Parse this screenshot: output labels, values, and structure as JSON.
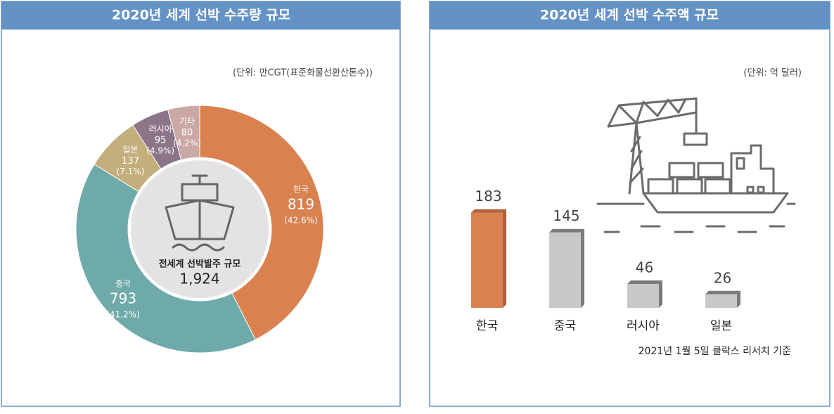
{
  "chart_data": [
    {
      "type": "donut",
      "title": "2020년 세계 선박 수주량 규모",
      "unit": "(단위: 만CGT(표준화물선환산톤수))",
      "categories": [
        "한국",
        "중국",
        "일본",
        "러시아",
        "기타"
      ],
      "values": [
        819,
        793,
        137,
        95,
        80
      ],
      "percent_labels": [
        "(42.6%)",
        "(41.2%)",
        "(7.1%)",
        "(4.9%)",
        "(4.2%)"
      ],
      "colors": [
        "#d9814f",
        "#6eaaa9",
        "#c3ae7c",
        "#8c7589",
        "#c9a8a6"
      ],
      "center_title": "전세계 선박발주 규모",
      "total": {
        "value": 1924,
        "label": "1,924"
      }
    },
    {
      "type": "bar3d",
      "title": "2020년 세계 선박 수주액 규모",
      "unit": "(단위: 억 달러)",
      "categories": [
        "한국",
        "중국",
        "러시아",
        "일본"
      ],
      "values": [
        183,
        145,
        46,
        26
      ],
      "colors": [
        "#d9814f",
        "#c8c8c8",
        "#c8c8c8",
        "#c8c8c8"
      ],
      "side_colors": [
        "#b0603a",
        "#7a7a7a",
        "#7a7a7a",
        "#7a7a7a"
      ],
      "note": "2021년 1월 5일 클락스 리서치 기준"
    }
  ]
}
